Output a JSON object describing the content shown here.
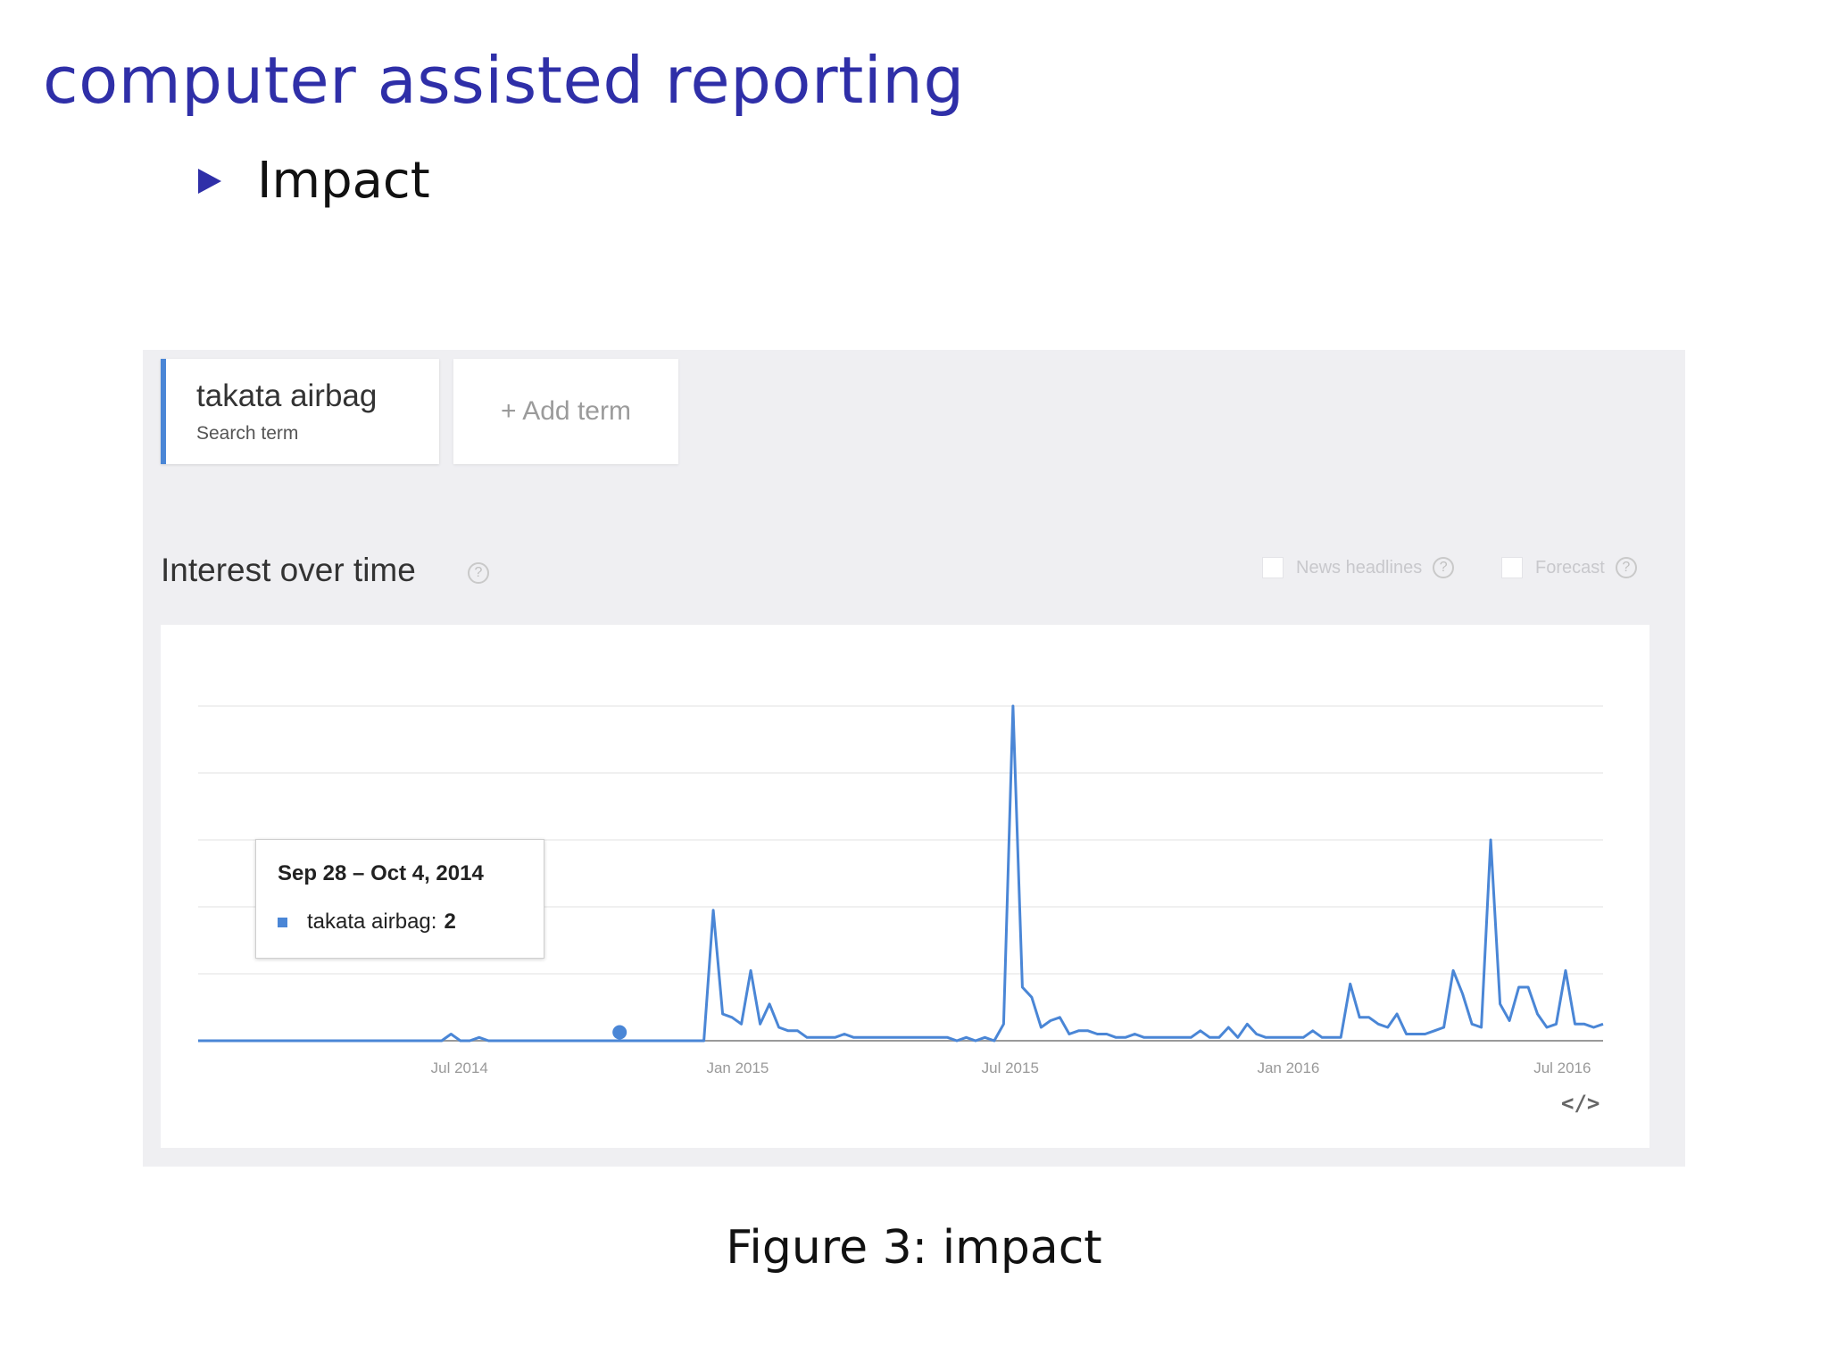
{
  "slide": {
    "title": "computer assisted reporting",
    "bullet": "Impact",
    "caption": "Figure 3: impact"
  },
  "trends": {
    "term_card": {
      "name": "takata airbag",
      "subtitle": "Search term"
    },
    "add_term_label": "+ Add term",
    "section_title": "Interest over time",
    "help_glyph": "?",
    "options": {
      "news_headlines": "News headlines",
      "forecast": "Forecast"
    },
    "tooltip": {
      "date": "Sep 28 – Oct 4, 2014",
      "series_label": "takata airbag:",
      "value": "2"
    },
    "embed_glyph": "</>"
  },
  "colors": {
    "accent": "#4a86d6",
    "title_blue": "#2f2fa8",
    "panel_bg": "#efeff2"
  },
  "chart_data": {
    "type": "line",
    "x_ticks": [
      "Jul 2014",
      "Jan 2015",
      "Jul 2015",
      "Jan 2016",
      "Jul 2016"
    ],
    "series": [
      {
        "name": "takata airbag",
        "values": [
          0,
          0,
          0,
          0,
          0,
          0,
          0,
          0,
          0,
          0,
          0,
          0,
          0,
          0,
          0,
          0,
          0,
          0,
          0,
          0,
          0,
          0,
          0,
          0,
          0,
          0,
          0,
          2,
          0,
          0,
          1,
          0,
          0,
          0,
          0,
          0,
          0,
          0,
          0,
          0,
          0,
          0,
          0,
          0,
          0,
          0,
          0,
          0,
          0,
          0,
          0,
          0,
          0,
          0,
          0,
          39,
          8,
          7,
          5,
          21,
          5,
          11,
          4,
          3,
          3,
          1,
          1,
          1,
          1,
          2,
          1,
          1,
          1,
          1,
          1,
          1,
          1,
          1,
          1,
          1,
          1,
          0,
          1,
          0,
          1,
          0,
          5,
          100,
          16,
          13,
          4,
          6,
          7,
          2,
          3,
          3,
          2,
          2,
          1,
          1,
          2,
          1,
          1,
          1,
          1,
          1,
          1,
          3,
          1,
          1,
          4,
          1,
          5,
          2,
          1,
          1,
          1,
          1,
          1,
          3,
          1,
          1,
          1,
          17,
          7,
          7,
          5,
          4,
          8,
          2,
          2,
          2,
          3,
          4,
          21,
          14,
          5,
          4,
          60,
          11,
          6,
          16,
          16,
          8,
          4,
          5,
          21,
          5,
          5,
          4,
          5
        ]
      }
    ],
    "highlight": {
      "label": "Sep 28 – Oct 4, 2014",
      "value": 2
    },
    "ylim": [
      0,
      100
    ],
    "grid": true,
    "legend": "none"
  }
}
